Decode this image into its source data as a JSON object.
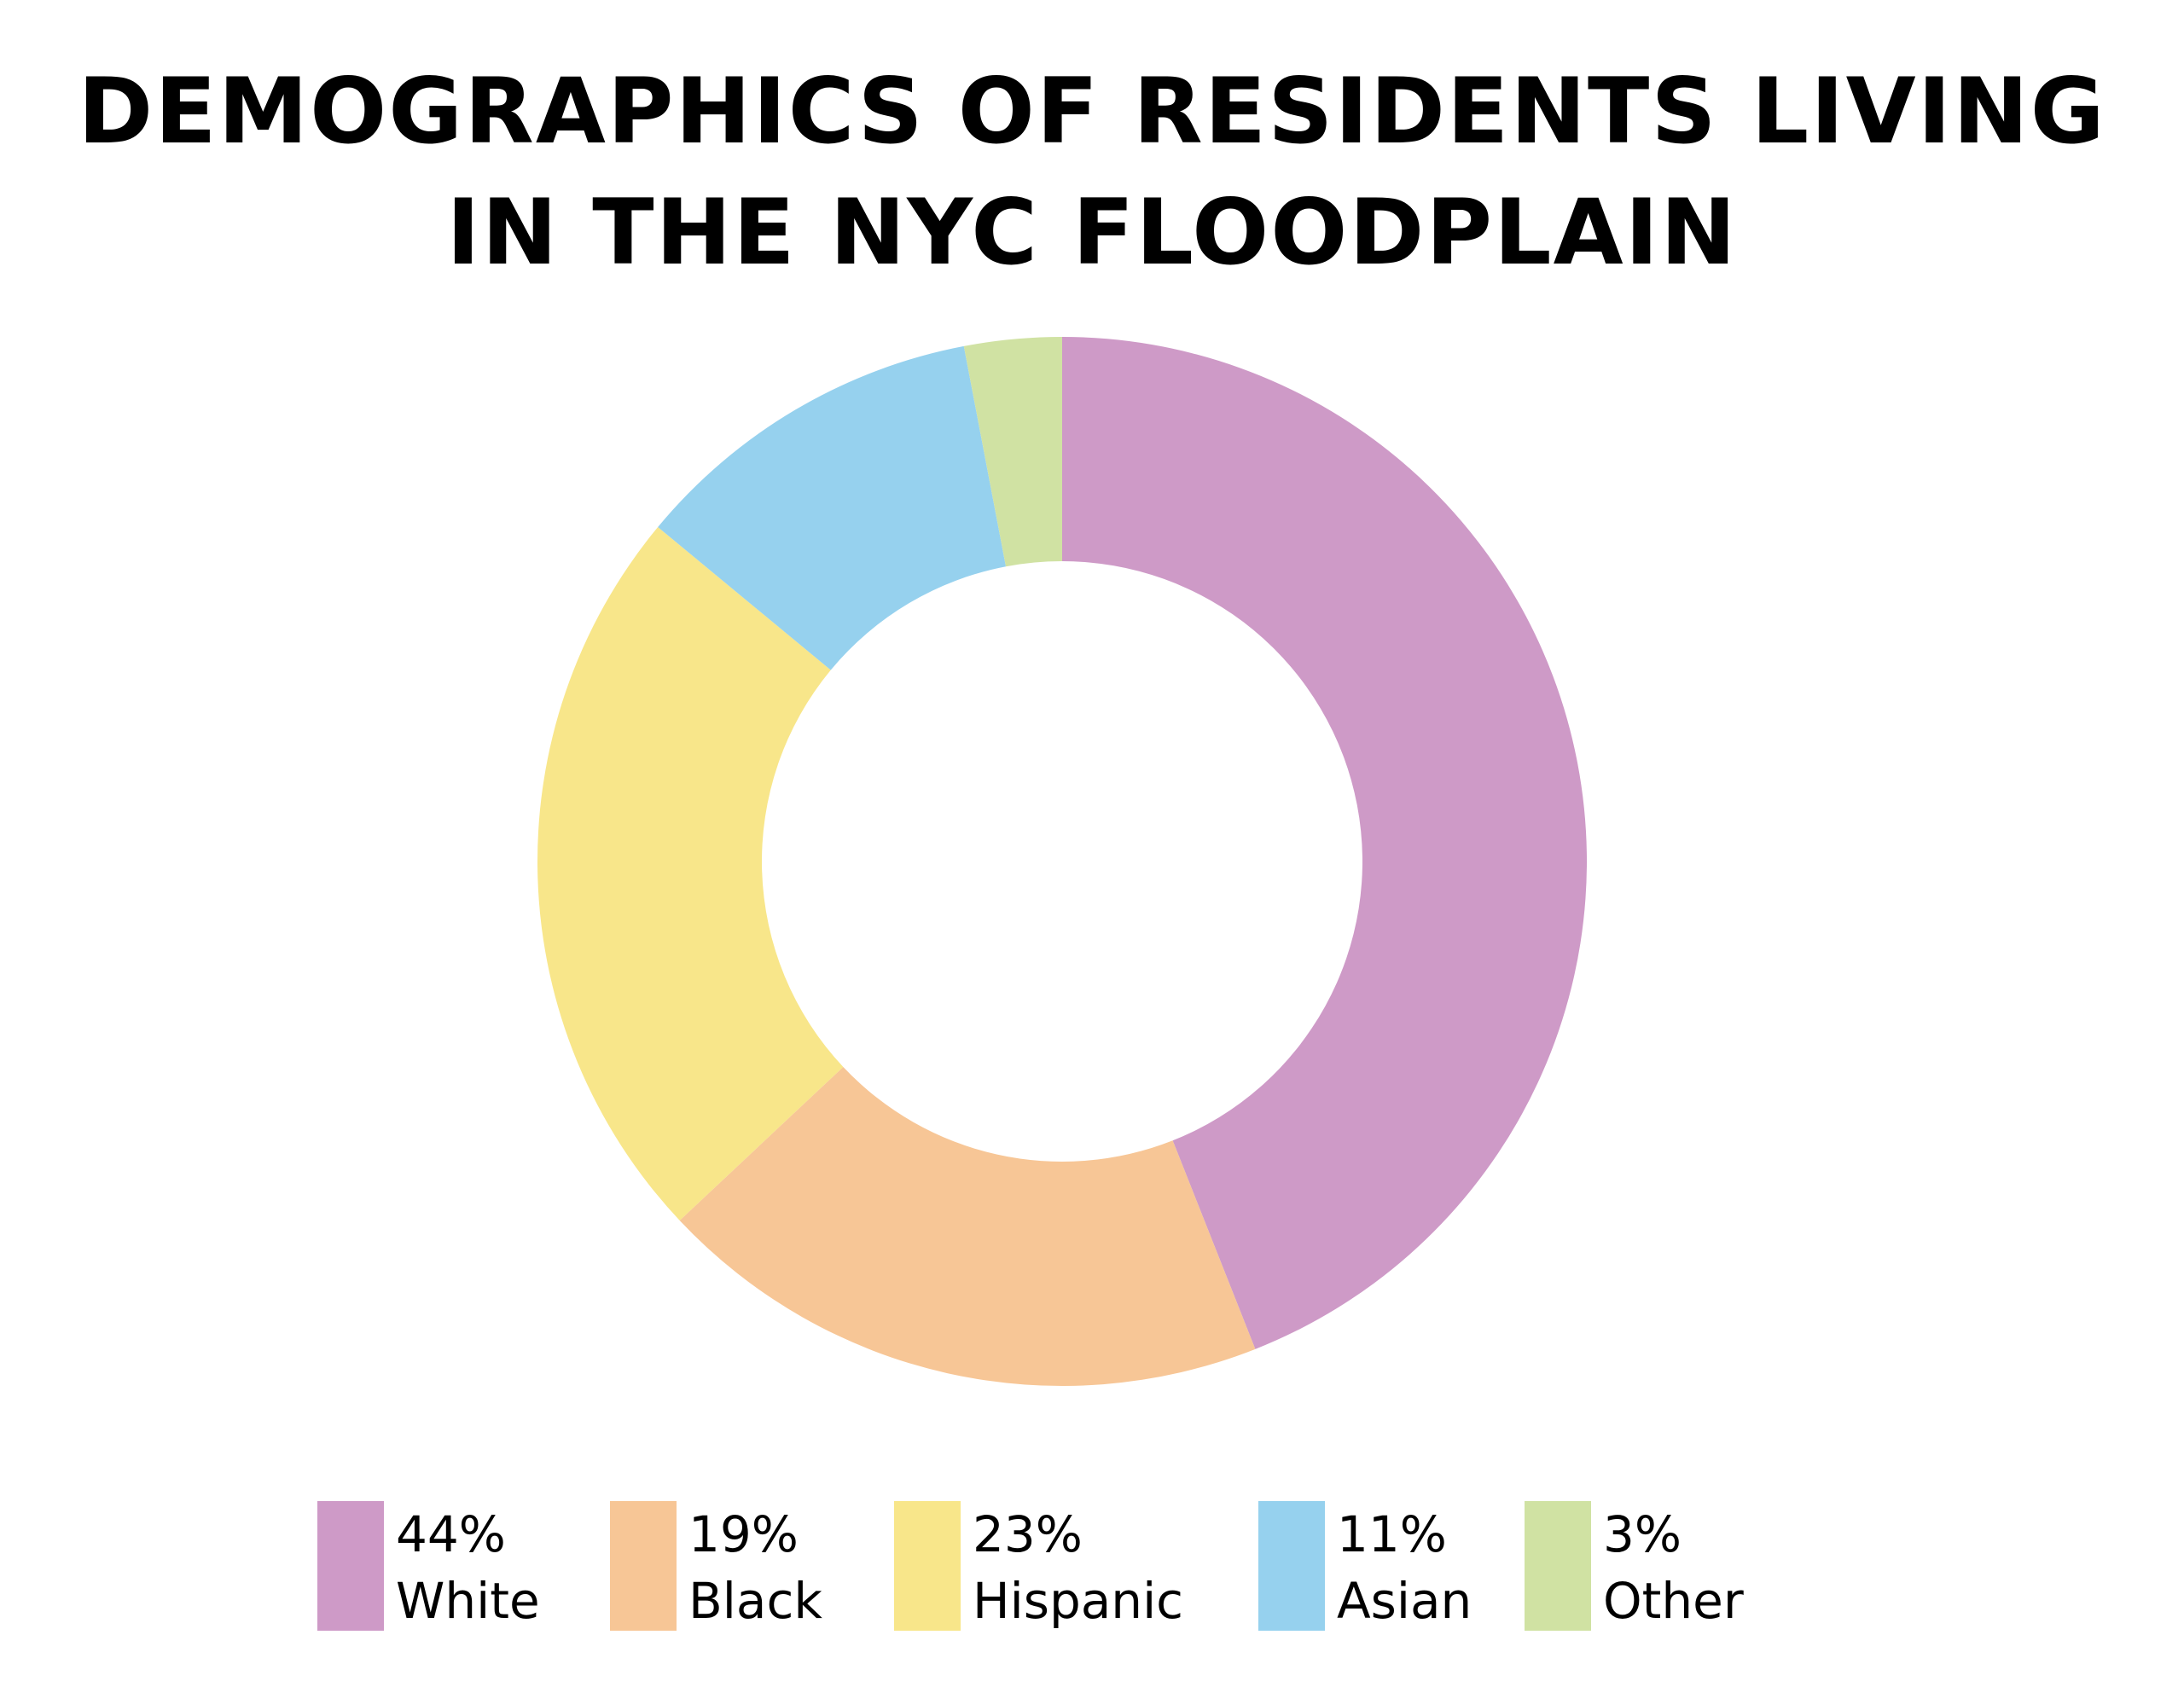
{
  "title": {
    "line1": "DEMOGRAPHICS OF RESIDENTS LIVING",
    "line2": "IN THE NYC FLOODPLAIN"
  },
  "chart_data": {
    "type": "pie",
    "variant": "donut",
    "title": "DEMOGRAPHICS OF RESIDENTS LIVING IN THE NYC FLOODPLAIN",
    "categories": [
      "White",
      "Black",
      "Hispanic",
      "Asian",
      "Other"
    ],
    "values": [
      44,
      19,
      23,
      11,
      3
    ],
    "value_labels": [
      "44%",
      "19%",
      "23%",
      "11%",
      "3%"
    ],
    "colors": [
      "#CE9AC7",
      "#F7C696",
      "#F8E68A",
      "#96D1EE",
      "#D0E2A3"
    ],
    "start_angle": "12 o'clock",
    "direction": "clockwise",
    "legend_position": "bottom"
  }
}
